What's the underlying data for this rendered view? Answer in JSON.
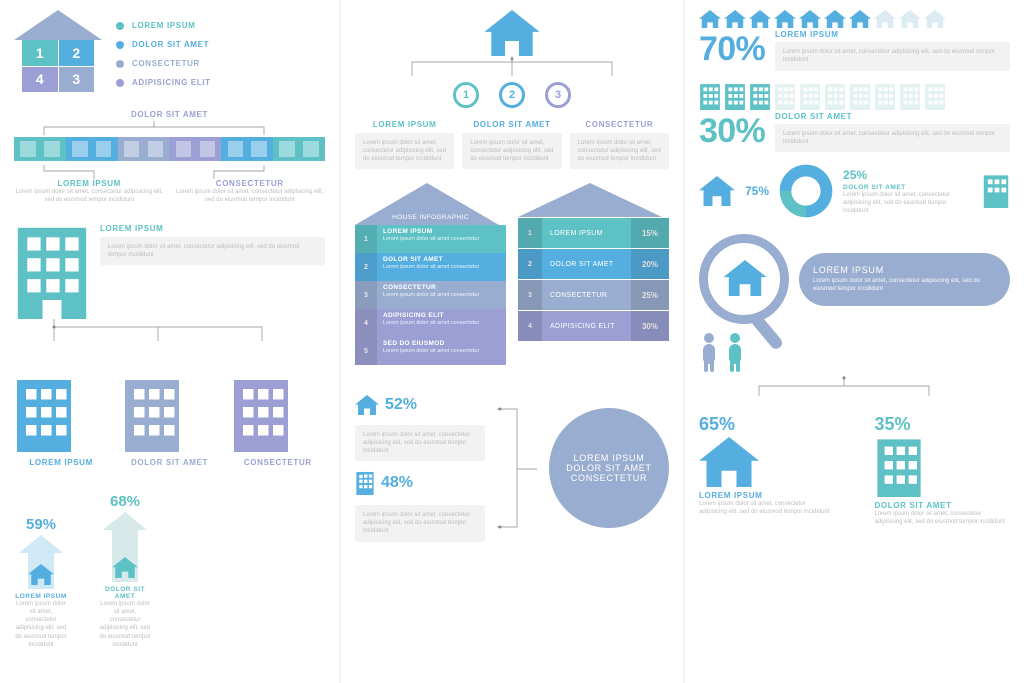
{
  "palette": {
    "teal": "#5dc1c6",
    "blue": "#55aee0",
    "slate": "#99add0",
    "purple": "#9b9fd3",
    "grey_bg": "#f2f2f2",
    "text_muted": "#bdbdbd"
  },
  "lorem_tiny": "Lorem ipsum dolor sit amet, consectetur adipisicing elit, sed do eiusmod tempor incididunt",
  "col1": {
    "house_quad": {
      "roof_color": "#99add0",
      "cells": [
        {
          "n": "1",
          "color": "#5dc1c6"
        },
        {
          "n": "2",
          "color": "#55aee0"
        },
        {
          "n": "4",
          "color": "#9b9fd3"
        },
        {
          "n": "3",
          "color": "#99add0"
        }
      ]
    },
    "bullets": [
      {
        "label": "LOREM IPSUM",
        "color": "#5dc1c6"
      },
      {
        "label": "DOLOR SIT AMET",
        "color": "#55aee0"
      },
      {
        "label": "CONSECTETUR",
        "color": "#99add0"
      },
      {
        "label": "ADIPISICING ELIT",
        "color": "#9b9fd3"
      }
    ],
    "strip": {
      "title": "DOLOR SIT AMET",
      "colors": [
        "#5dc1c6",
        "#55aee0",
        "#99add0",
        "#9b9fd3",
        "#55aee0",
        "#5dc1c6"
      ],
      "left": {
        "label": "LOREM IPSUM"
      },
      "right": {
        "label": "CONSECTETUR"
      }
    },
    "big_building": {
      "color": "#5dc1c6",
      "title": "LOREM IPSUM"
    },
    "three": [
      {
        "label": "LOREM IPSUM",
        "color": "#55aee0"
      },
      {
        "label": "DOLOR SIT AMET",
        "color": "#99add0"
      },
      {
        "label": "CONSECTETUR",
        "color": "#9b9fd3"
      }
    ],
    "arrows": [
      {
        "pct": "59%",
        "height": 36,
        "color": "#cfe9f6",
        "label": "LOREM IPSUM",
        "house_color": "#55aee0"
      },
      {
        "pct": "68%",
        "height": 52,
        "color": "#d8e9e9",
        "label": "DOLOR SIT AMET",
        "house_color": "#5dc1c6"
      }
    ]
  },
  "col2": {
    "tree": {
      "root_color": "#55aee0",
      "nodes": [
        {
          "n": "1",
          "color": "#5dc1c6",
          "label": "LOREM IPSUM"
        },
        {
          "n": "2",
          "color": "#55aee0",
          "label": "DOLOR SIT AMET"
        },
        {
          "n": "3",
          "color": "#9b9fd3",
          "label": "CONSECTETUR"
        }
      ]
    },
    "stack": {
      "roof_label": "HOUSE INFOGRAPHIC",
      "roof_color": "#99add0",
      "rows": [
        {
          "n": "1",
          "title": "LOREM IPSUM",
          "color": "#5dc1c6"
        },
        {
          "n": "2",
          "title": "DOLOR SIT AMET",
          "color": "#55aee0"
        },
        {
          "n": "3",
          "title": "CONSECTETUR",
          "color": "#99add0"
        },
        {
          "n": "4",
          "title": "ADIPISICING ELIT",
          "color": "#9b9fd3"
        },
        {
          "n": "5",
          "title": "SED DO EIUSMOD",
          "color": "#9b9fd3"
        }
      ]
    },
    "table": {
      "roof_color": "#99add0",
      "rows": [
        {
          "n": "1",
          "label": "LOREM IPSUM",
          "pct": "15%",
          "color": "#5dc1c6"
        },
        {
          "n": "2",
          "label": "DOLOR SIT AMET",
          "pct": "20%",
          "color": "#55aee0"
        },
        {
          "n": "3",
          "label": "CONSECTETUR",
          "pct": "25%",
          "color": "#99add0"
        },
        {
          "n": "4",
          "label": "ADIPISICING ELIT",
          "pct": "30%",
          "color": "#9b9fd3"
        }
      ]
    },
    "bottom": {
      "a": {
        "pct": "52%",
        "icon": "house",
        "color": "#55aee0"
      },
      "b": {
        "pct": "48%",
        "icon": "building",
        "color": "#55aee0"
      },
      "circle": {
        "color": "#99add0",
        "line1": "LOREM IPSUM",
        "line2": "DOLOR SIT AMET",
        "line3": "CONSECTETUR"
      }
    }
  },
  "col3": {
    "stat1": {
      "row_icon": "house",
      "filled": 7,
      "total": 10,
      "on": "#55aee0",
      "off": "#dceaf2",
      "pct": "70%",
      "label": "LOREM IPSUM"
    },
    "stat2": {
      "row_icon": "building",
      "filled": 3,
      "total": 10,
      "on": "#5dc1c6",
      "off": "#e4f1f1",
      "pct": "30%",
      "label": "DOLOR SIT AMET"
    },
    "donut": {
      "a": {
        "pct": "75%",
        "color": "#55aee0",
        "icon": "house"
      },
      "b": {
        "pct": "25%",
        "color": "#5dc1c6",
        "icon": "building",
        "label": "DOLOR SIT AMET"
      }
    },
    "lens": {
      "ring": "#99add0",
      "house": "#55aee0",
      "title": "LOREM IPSUM",
      "pill": "#99add0"
    },
    "people": [
      "#99add0",
      "#5dc1c6"
    ],
    "split": {
      "a": {
        "pct": "65%",
        "icon": "house",
        "color": "#55aee0",
        "label": "LOREM IPSUM"
      },
      "b": {
        "pct": "35%",
        "icon": "building",
        "color": "#5dc1c6",
        "label": "DOLOR SIT AMET"
      }
    }
  }
}
